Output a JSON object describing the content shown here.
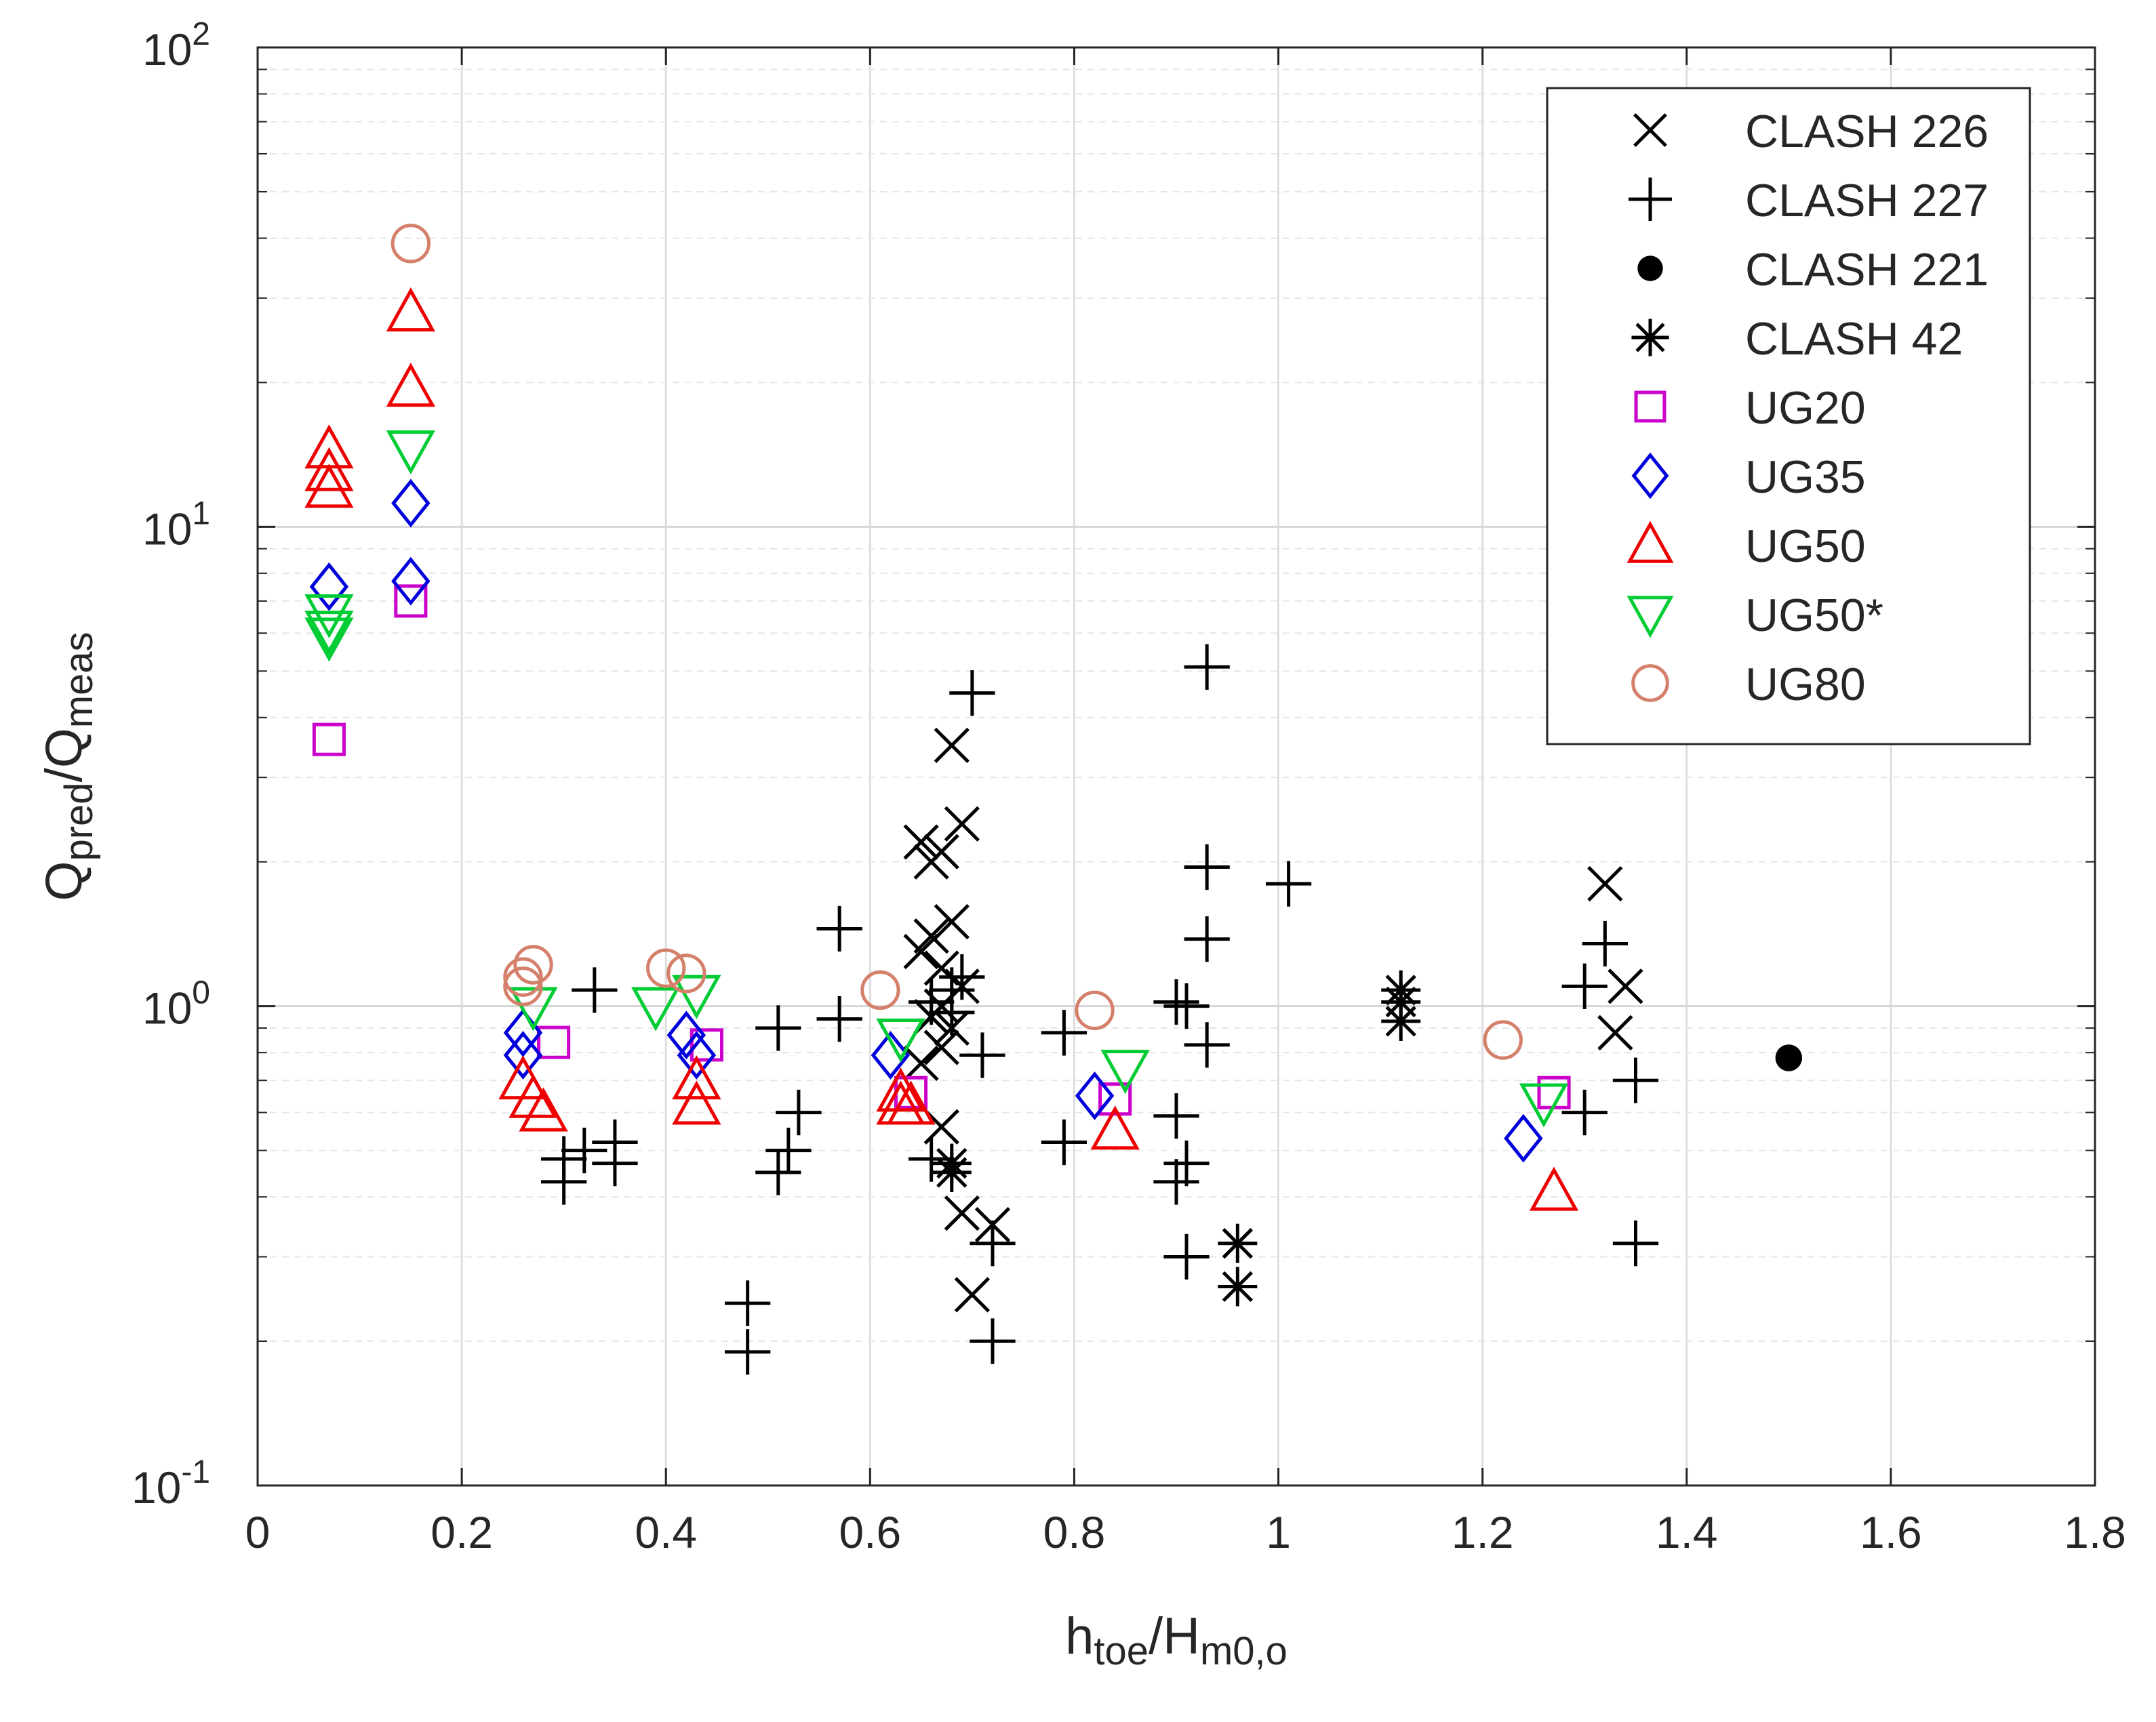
{
  "chart_data": {
    "type": "scatter",
    "xlabel": {
      "main": "h",
      "sub1": "toe",
      "mid": "/H",
      "sub2": "m0,o"
    },
    "ylabel": {
      "main1": "Q",
      "sub1": "pred",
      "mid": "/Q",
      "sub2": "meas"
    },
    "xlim": [
      0,
      1.8
    ],
    "ylim": [
      0.1,
      100
    ],
    "yscale": "log",
    "grid": true,
    "legend_position": "top-right",
    "x_ticks": [
      {
        "value": 0,
        "label": "0"
      },
      {
        "value": 0.2,
        "label": "0.2"
      },
      {
        "value": 0.4,
        "label": "0.4"
      },
      {
        "value": 0.6,
        "label": "0.6"
      },
      {
        "value": 0.8,
        "label": "0.8"
      },
      {
        "value": 1.0,
        "label": "1"
      },
      {
        "value": 1.2,
        "label": "1.2"
      },
      {
        "value": 1.4,
        "label": "1.4"
      },
      {
        "value": 1.6,
        "label": "1.6"
      },
      {
        "value": 1.8,
        "label": "1.8"
      }
    ],
    "y_ticks": [
      {
        "value": 0.1,
        "base": "10",
        "exp": "-1"
      },
      {
        "value": 1,
        "base": "10",
        "exp": "0"
      },
      {
        "value": 10,
        "base": "10",
        "exp": "1"
      },
      {
        "value": 100,
        "base": "10",
        "exp": "2"
      }
    ],
    "series": [
      {
        "name": "CLASH 226",
        "marker": "x",
        "color": "#000000",
        "points": [
          [
            0.65,
            2.2
          ],
          [
            0.66,
            2.0
          ],
          [
            0.67,
            2.1
          ],
          [
            0.68,
            3.5
          ],
          [
            0.69,
            2.4
          ],
          [
            0.65,
            1.3
          ],
          [
            0.66,
            1.4
          ],
          [
            0.67,
            1.2
          ],
          [
            0.68,
            1.5
          ],
          [
            0.69,
            1.1
          ],
          [
            0.66,
            0.95
          ],
          [
            0.67,
            1.0
          ],
          [
            0.68,
            0.9
          ],
          [
            0.67,
            0.82
          ],
          [
            0.65,
            0.76
          ],
          [
            0.66,
            0.95
          ],
          [
            0.67,
            0.56
          ],
          [
            0.69,
            0.37
          ],
          [
            0.7,
            0.25
          ],
          [
            0.72,
            0.35
          ],
          [
            1.32,
            1.8
          ],
          [
            1.34,
            1.1
          ],
          [
            1.33,
            0.88
          ]
        ]
      },
      {
        "name": "CLASH 227",
        "marker": "plus",
        "color": "#000000",
        "points": [
          [
            0.33,
            1.08
          ],
          [
            0.3,
            0.48
          ],
          [
            0.3,
            0.43
          ],
          [
            0.32,
            0.5
          ],
          [
            0.35,
            0.52
          ],
          [
            0.35,
            0.47
          ],
          [
            0.48,
            0.24
          ],
          [
            0.48,
            0.19
          ],
          [
            0.51,
            0.9
          ],
          [
            0.51,
            0.45
          ],
          [
            0.52,
            0.5
          ],
          [
            0.53,
            0.6
          ],
          [
            0.57,
            1.45
          ],
          [
            0.57,
            0.94
          ],
          [
            0.66,
            1.02
          ],
          [
            0.68,
            1.08
          ],
          [
            0.69,
            1.15
          ],
          [
            0.7,
            4.5
          ],
          [
            0.68,
            0.97
          ],
          [
            0.71,
            0.79
          ],
          [
            0.72,
            0.32
          ],
          [
            0.72,
            0.2
          ],
          [
            0.79,
            0.88
          ],
          [
            0.79,
            0.52
          ],
          [
            0.9,
            1.02
          ],
          [
            0.91,
            1.0
          ],
          [
            0.9,
            0.59
          ],
          [
            0.9,
            0.43
          ],
          [
            0.91,
            0.47
          ],
          [
            0.91,
            0.3
          ],
          [
            0.93,
            5.1
          ],
          [
            0.93,
            1.95
          ],
          [
            0.93,
            1.38
          ],
          [
            0.93,
            0.83
          ],
          [
            1.01,
            1.8
          ],
          [
            1.3,
            1.1
          ],
          [
            1.32,
            1.35
          ],
          [
            1.3,
            0.6
          ],
          [
            1.35,
            0.7
          ],
          [
            1.35,
            0.32
          ],
          [
            0.66,
            0.48
          ]
        ]
      },
      {
        "name": "CLASH 221",
        "marker": "dot",
        "color": "#000000",
        "points": [
          [
            1.5,
            0.78
          ]
        ]
      },
      {
        "name": "CLASH 42",
        "marker": "star",
        "color": "#000000",
        "points": [
          [
            1.12,
            1.08
          ],
          [
            1.12,
            1.02
          ],
          [
            1.12,
            0.93
          ],
          [
            0.96,
            0.32
          ],
          [
            0.96,
            0.26
          ],
          [
            0.68,
            0.45
          ],
          [
            0.68,
            0.47
          ]
        ]
      },
      {
        "name": "UG20",
        "marker": "square",
        "color": "#cc00cc",
        "points": [
          [
            0.07,
            3.6
          ],
          [
            0.15,
            7.0
          ],
          [
            0.29,
            0.84
          ],
          [
            0.44,
            0.83
          ],
          [
            0.64,
            0.66
          ],
          [
            0.84,
            0.64
          ],
          [
            1.27,
            0.66
          ]
        ]
      },
      {
        "name": "UG35",
        "marker": "diamond",
        "color": "#0000dd",
        "points": [
          [
            0.07,
            7.5
          ],
          [
            0.15,
            11.2
          ],
          [
            0.15,
            7.7
          ],
          [
            0.26,
            0.88
          ],
          [
            0.26,
            0.79
          ],
          [
            0.42,
            0.87
          ],
          [
            0.43,
            0.79
          ],
          [
            0.62,
            0.79
          ],
          [
            0.82,
            0.65
          ],
          [
            1.24,
            0.53
          ]
        ]
      },
      {
        "name": "UG50",
        "marker": "triangle",
        "color": "#ee0000",
        "points": [
          [
            0.07,
            14.5
          ],
          [
            0.07,
            13.0
          ],
          [
            0.07,
            12.0
          ],
          [
            0.15,
            28.0
          ],
          [
            0.15,
            19.5
          ],
          [
            0.26,
            0.7
          ],
          [
            0.27,
            0.64
          ],
          [
            0.28,
            0.6
          ],
          [
            0.43,
            0.7
          ],
          [
            0.43,
            0.62
          ],
          [
            0.63,
            0.66
          ],
          [
            0.63,
            0.62
          ],
          [
            0.64,
            0.62
          ],
          [
            0.84,
            0.55
          ],
          [
            1.27,
            0.41
          ]
        ]
      },
      {
        "name": "UG50*",
        "marker": "triangle-down",
        "color": "#00cc33",
        "points": [
          [
            0.07,
            6.6
          ],
          [
            0.07,
            6.1
          ],
          [
            0.07,
            5.9
          ],
          [
            0.15,
            14.5
          ],
          [
            0.27,
            1.0
          ],
          [
            0.39,
            1.0
          ],
          [
            0.43,
            1.06
          ],
          [
            0.63,
            0.86
          ],
          [
            0.85,
            0.74
          ],
          [
            1.26,
            0.63
          ]
        ]
      },
      {
        "name": "UG80",
        "marker": "circle",
        "color": "#d4806a",
        "points": [
          [
            0.15,
            39.0
          ],
          [
            0.26,
            1.15
          ],
          [
            0.26,
            1.1
          ],
          [
            0.27,
            1.22
          ],
          [
            0.4,
            1.2
          ],
          [
            0.42,
            1.17
          ],
          [
            0.61,
            1.08
          ],
          [
            0.82,
            0.98
          ],
          [
            1.22,
            0.85
          ]
        ]
      }
    ]
  }
}
